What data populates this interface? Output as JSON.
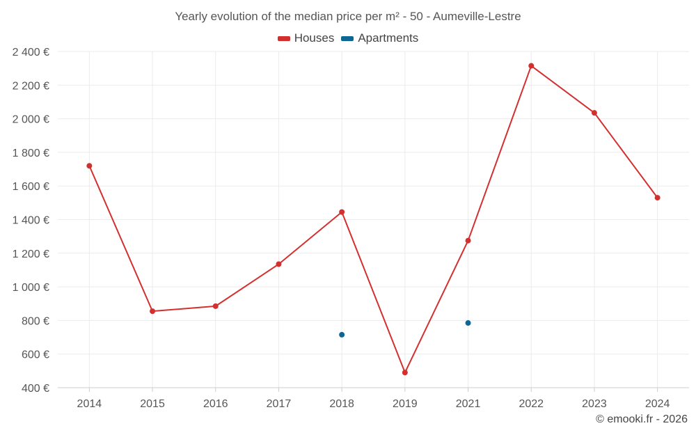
{
  "chart_data": {
    "type": "line",
    "title": "Yearly evolution of the median price per m² - 50 - Aumeville-Lestre",
    "categories": [
      "2014",
      "2015",
      "2016",
      "2017",
      "2018",
      "2019",
      "2021",
      "2022",
      "2023",
      "2024"
    ],
    "series": [
      {
        "name": "Houses",
        "color": "#d32f2f",
        "values": [
          1720,
          855,
          885,
          1135,
          1445,
          490,
          1275,
          2315,
          2035,
          1530
        ]
      },
      {
        "name": "Apartments",
        "color": "#0d6796",
        "values": [
          null,
          null,
          null,
          null,
          715,
          null,
          785,
          null,
          null,
          null
        ]
      }
    ],
    "ylim": [
      400,
      2400
    ],
    "yticks": [
      400,
      600,
      800,
      1000,
      1200,
      1400,
      1600,
      1800,
      2000,
      2200,
      2400
    ],
    "ytick_labels": [
      "400 €",
      "600 €",
      "800 €",
      "1 000 €",
      "1 200 €",
      "1 400 €",
      "1 600 €",
      "1 800 €",
      "2 000 €",
      "2 200 €",
      "2 400 €"
    ],
    "xlabel": "",
    "ylabel": "",
    "grid": true,
    "legend_position": "top-center"
  },
  "credit": "© emooki.fr - 2026"
}
